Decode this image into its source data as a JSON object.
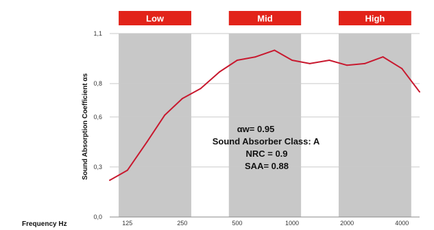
{
  "chart_data": {
    "type": "line",
    "xlabel": "Frequency Hz",
    "ylabel": "Sound Absorption Coefficient αs",
    "x_scale": "log",
    "xlim": [
      100,
      5000
    ],
    "ylim": [
      0.0,
      1.1
    ],
    "y_ticks": [
      {
        "value": 0.0,
        "label": "0,0"
      },
      {
        "value": 0.3,
        "label": "0,3"
      },
      {
        "value": 0.6,
        "label": "0,6"
      },
      {
        "value": 0.8,
        "label": "0,8"
      },
      {
        "value": 1.1,
        "label": "1,1"
      }
    ],
    "x_ticks": [
      {
        "value": 125,
        "label": "125"
      },
      {
        "value": 250,
        "label": "250"
      },
      {
        "value": 500,
        "label": "500"
      },
      {
        "value": 1000,
        "label": "1000"
      },
      {
        "value": 2000,
        "label": "2000"
      },
      {
        "value": 4000,
        "label": "4000"
      }
    ],
    "bands": [
      {
        "label": "Low",
        "from": 112,
        "to": 280
      },
      {
        "label": "Mid",
        "from": 450,
        "to": 1120
      },
      {
        "label": "High",
        "from": 1800,
        "to": 4500
      }
    ],
    "series": [
      {
        "color": "#c8182e",
        "x": [
          100,
          125,
          160,
          200,
          250,
          315,
          400,
          500,
          630,
          800,
          1000,
          1250,
          1600,
          2000,
          2500,
          3150,
          4000,
          5000
        ],
        "y": [
          0.22,
          0.28,
          0.45,
          0.61,
          0.71,
          0.77,
          0.87,
          0.94,
          0.96,
          1.0,
          0.94,
          0.92,
          0.94,
          0.91,
          0.92,
          0.96,
          0.89,
          0.75
        ]
      }
    ],
    "grid": true,
    "legend": "none",
    "annotations": [
      "αw= 0.95",
      "Sound Absorber Class: A",
      "NRC = 0.9",
      "SAA= 0.88"
    ]
  }
}
